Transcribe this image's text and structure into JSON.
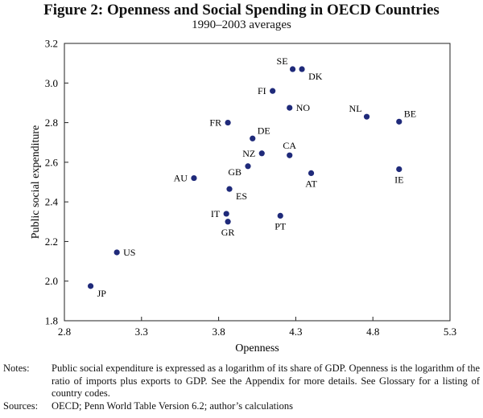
{
  "header": {
    "title": "Figure 2: Openness and Social Spending in OECD Countries",
    "subtitle": "1990–2003 averages"
  },
  "chart_data": {
    "type": "scatter",
    "title": "Figure 2: Openness and Social Spending in OECD Countries",
    "subtitle": "1990–2003 averages",
    "xlabel": "Openness",
    "ylabel": "Public social expenditure",
    "xlim": [
      2.8,
      5.3
    ],
    "ylim": [
      1.8,
      3.2
    ],
    "xticks": [
      "2.8",
      "3.3",
      "3.8",
      "4.3",
      "4.8",
      "5.3"
    ],
    "yticks": [
      "1.8",
      "2.0",
      "2.2",
      "2.4",
      "2.6",
      "2.8",
      "3.0",
      "3.2"
    ],
    "grid": false,
    "marker_color": "#1f2a7a",
    "points": [
      {
        "label": "JP",
        "x": 2.97,
        "y": 1.975,
        "label_pos": "right-below"
      },
      {
        "label": "US",
        "x": 3.14,
        "y": 2.145,
        "label_pos": "right"
      },
      {
        "label": "AU",
        "x": 3.64,
        "y": 2.52,
        "label_pos": "left"
      },
      {
        "label": "IT",
        "x": 3.85,
        "y": 2.34,
        "label_pos": "left"
      },
      {
        "label": "GR",
        "x": 3.86,
        "y": 2.3,
        "label_pos": "below"
      },
      {
        "label": "ES",
        "x": 3.87,
        "y": 2.465,
        "label_pos": "right-below"
      },
      {
        "label": "FR",
        "x": 3.86,
        "y": 2.8,
        "label_pos": "left"
      },
      {
        "label": "GB",
        "x": 3.99,
        "y": 2.58,
        "label_pos": "left-below"
      },
      {
        "label": "DE",
        "x": 4.02,
        "y": 2.72,
        "label_pos": "right-above"
      },
      {
        "label": "NZ",
        "x": 4.08,
        "y": 2.645,
        "label_pos": "left"
      },
      {
        "label": "FI",
        "x": 4.15,
        "y": 2.96,
        "label_pos": "left"
      },
      {
        "label": "PT",
        "x": 4.2,
        "y": 2.33,
        "label_pos": "below"
      },
      {
        "label": "CA",
        "x": 4.26,
        "y": 2.635,
        "label_pos": "above"
      },
      {
        "label": "NO",
        "x": 4.26,
        "y": 2.875,
        "label_pos": "right"
      },
      {
        "label": "SE",
        "x": 4.28,
        "y": 3.07,
        "label_pos": "left-above"
      },
      {
        "label": "DK",
        "x": 4.34,
        "y": 3.07,
        "label_pos": "right-below"
      },
      {
        "label": "AT",
        "x": 4.4,
        "y": 2.545,
        "label_pos": "below"
      },
      {
        "label": "NL",
        "x": 4.76,
        "y": 2.83,
        "label_pos": "left-above"
      },
      {
        "label": "BE",
        "x": 4.97,
        "y": 2.805,
        "label_pos": "right-above"
      },
      {
        "label": "IE",
        "x": 4.97,
        "y": 2.565,
        "label_pos": "below"
      }
    ]
  },
  "footer": {
    "notes_label": "Notes:",
    "notes_text": "Public social expenditure is expressed as a logarithm of its share of GDP. Openness is the logarithm of the ratio of imports plus exports to GDP. See the Appendix for more details. See Glossary for a listing of country codes.",
    "sources_label": "Sources:",
    "sources_text": "OECD; Penn World Table Version 6.2; author’s calculations"
  }
}
